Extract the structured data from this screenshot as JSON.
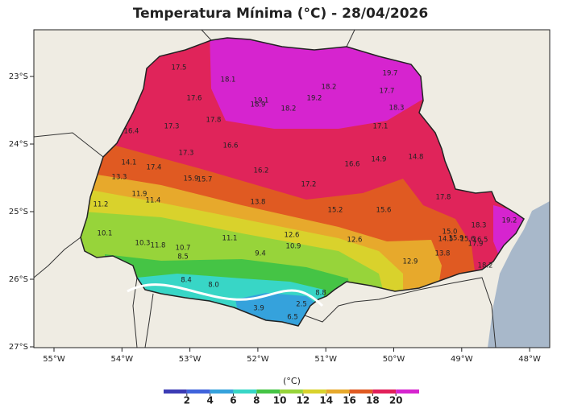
{
  "title": "Temperatura Mínima (°C) - 28/04/2026",
  "map": {
    "lon_ticks": [
      {
        "value": -55,
        "label": "55°W"
      },
      {
        "value": -54,
        "label": "54°W"
      },
      {
        "value": -53,
        "label": "53°W"
      },
      {
        "value": -52,
        "label": "52°W"
      },
      {
        "value": -51,
        "label": "51°W"
      },
      {
        "value": -50,
        "label": "50°W"
      },
      {
        "value": -49,
        "label": "49°W"
      },
      {
        "value": -48,
        "label": "48°W"
      }
    ],
    "lat_ticks": [
      {
        "value": -23,
        "label": "23°S"
      },
      {
        "value": -24,
        "label": "24°S"
      },
      {
        "value": -25,
        "label": "25°S"
      },
      {
        "value": -26,
        "label": "26°S"
      },
      {
        "value": -27,
        "label": "27°S"
      }
    ],
    "stations": {
      "values": [
        17.5,
        18.1,
        19.7,
        18.2,
        17.7,
        17.6,
        19.1,
        18.9,
        19.2,
        18.2,
        18.3,
        17.3,
        17.8,
        16.4,
        17.1,
        16.6,
        17.3,
        14.1,
        17.4,
        16.6,
        14.9,
        14.8,
        15.9,
        15.7,
        16.2,
        17.2,
        13.3,
        11.9,
        11.4,
        13.8,
        17.8,
        11.2,
        15.2,
        15.6,
        18.3,
        19.2,
        10.1,
        12.6,
        12.6,
        15,
        14.5,
        15.9,
        15.6,
        16.5,
        17.9,
        11.1,
        10.3,
        11.8,
        10.7,
        10.9,
        8.5,
        9.4,
        13.8,
        12.9,
        18.2,
        8.4,
        8.0,
        8.8,
        3.9,
        2.5,
        6.5
      ],
      "value_labels": [
        "17.5",
        "18.1",
        "19.7",
        "18.2",
        "17.7",
        "17.6",
        "19.1",
        "18.9",
        "19.2",
        "18.2",
        "18.3",
        "17.3",
        "17.8",
        "16.4",
        "17.1",
        "16.6",
        "17.3",
        "14.1",
        "17.4",
        "16.6",
        "14.9",
        "14.8",
        "15.9",
        "15.7",
        "16.2",
        "17.2",
        "13.3",
        "11.9",
        "11.4",
        "13.8",
        "17.8",
        "11.2",
        "15.2",
        "15.6",
        "18.3",
        "19.2",
        "10.1",
        "12.6",
        "12.6",
        "15.0",
        "14.5",
        "15.9",
        "15.6",
        "16.5",
        "17.9",
        "11.1",
        "10.3",
        "11.8",
        "10.7",
        "10.9",
        "8.5",
        "9.4",
        "13.8",
        "12.9",
        "18.2",
        "8.4",
        "8.0",
        "8.8",
        "3.9",
        "2.5",
        "6.5"
      ]
    }
  },
  "colorbar": {
    "unit": "(°C)",
    "lim": [
      0,
      22
    ],
    "ticks": [
      2,
      4,
      6,
      8,
      10,
      12,
      14,
      16,
      18,
      20
    ],
    "colors": [
      "#3b3bb5",
      "#3f63dc",
      "#35a2dc",
      "#38d6c6",
      "#45c445",
      "#97d43a",
      "#d9d22c",
      "#e7a92c",
      "#e05a22",
      "#e2205a",
      "#d624cf"
    ]
  }
}
